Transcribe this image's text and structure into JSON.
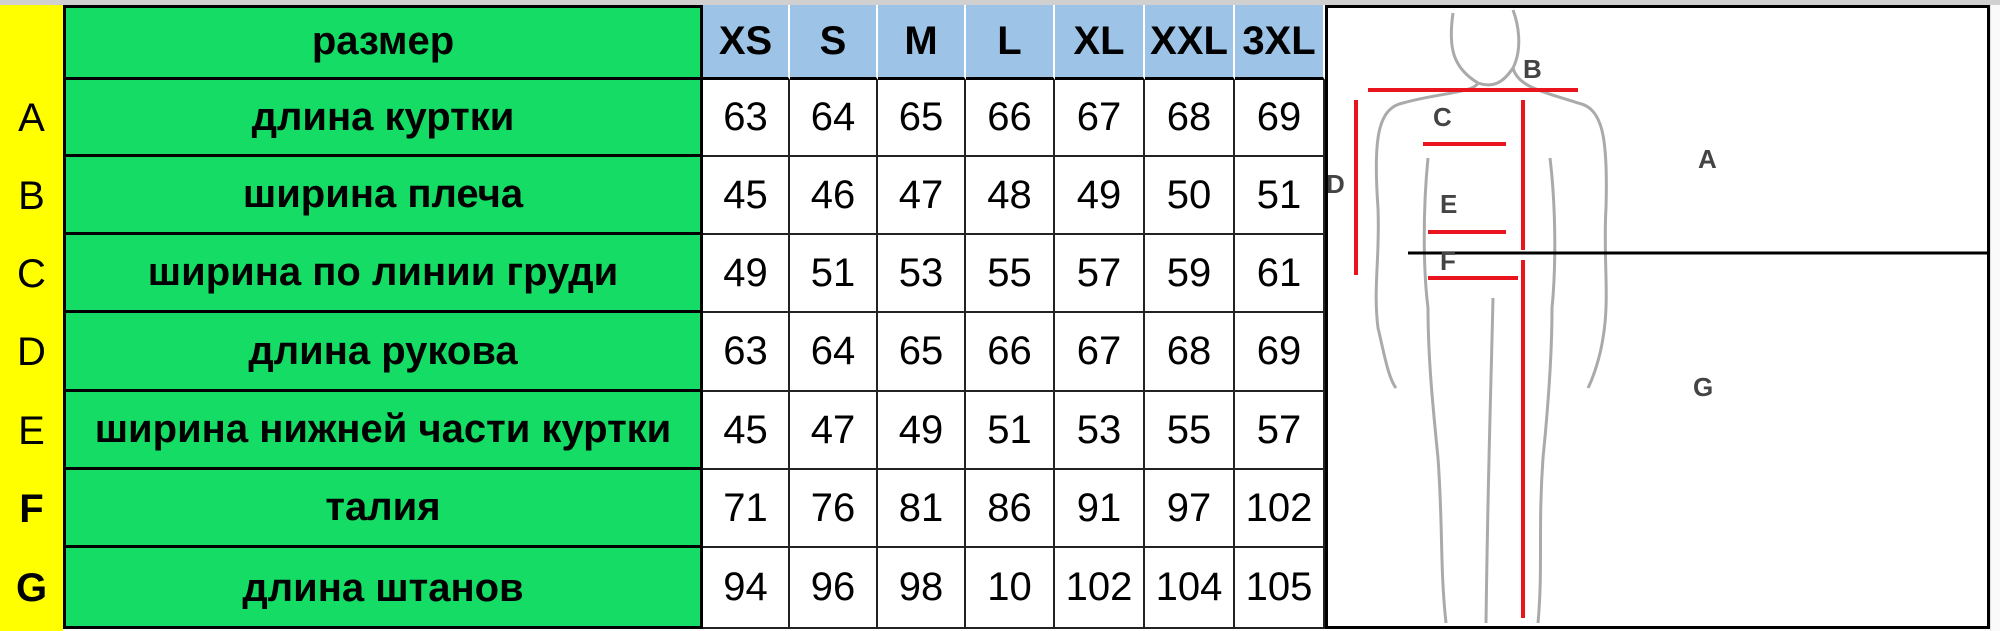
{
  "header": {
    "label": "размер",
    "sizes": [
      "XS",
      "S",
      "M",
      "L",
      "XL",
      "XXL",
      "3XL"
    ]
  },
  "rows": [
    {
      "letter": "A",
      "label": "длина куртки",
      "values": [
        "63",
        "64",
        "65",
        "66",
        "67",
        "68",
        "69"
      ]
    },
    {
      "letter": "B",
      "label": "ширина плеча",
      "values": [
        "45",
        "46",
        "47",
        "48",
        "49",
        "50",
        "51"
      ]
    },
    {
      "letter": "C",
      "label": "ширина по линии груди",
      "values": [
        "49",
        "51",
        "53",
        "55",
        "57",
        "59",
        "61"
      ]
    },
    {
      "letter": "D",
      "label": "длина рукова",
      "values": [
        "63",
        "64",
        "65",
        "66",
        "67",
        "68",
        "69"
      ]
    },
    {
      "letter": "E",
      "label": "ширина нижней части куртки",
      "values": [
        "45",
        "47",
        "49",
        "51",
        "53",
        "55",
        "57"
      ]
    },
    {
      "letter": "F",
      "label": "талия",
      "values": [
        "71",
        "76",
        "81",
        "86",
        "91",
        "97",
        "102"
      ]
    },
    {
      "letter": "G",
      "label": "длина штанов",
      "values": [
        "94",
        "96",
        "98",
        "10",
        "102",
        "104",
        "105"
      ]
    }
  ],
  "figure": {
    "labels": [
      "A",
      "B",
      "C",
      "D",
      "E",
      "F",
      "G"
    ]
  },
  "colors": {
    "letter_column": "#ffff00",
    "label_column": "#14dc64",
    "size_header": "#9dc3e6",
    "arrows": "#e8141e"
  }
}
